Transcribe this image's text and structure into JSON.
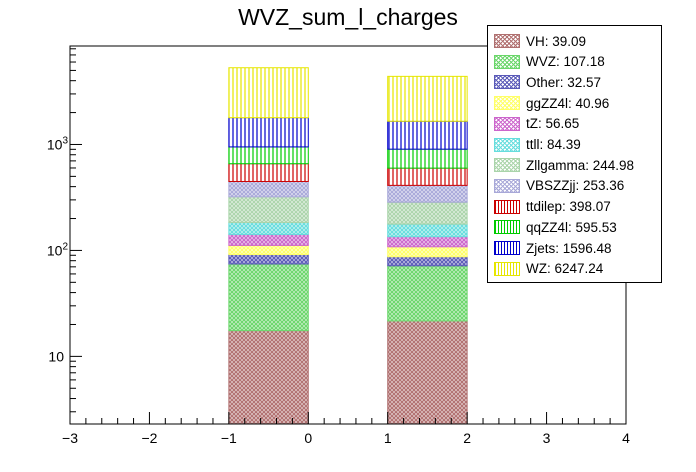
{
  "chart_data": {
    "type": "bar",
    "stacked": true,
    "title": "WVZ_sum_l_charges",
    "xlabel": "",
    "ylabel": "",
    "xlim": [
      -3,
      4
    ],
    "ylim": [
      2.3,
      8500
    ],
    "yscale": "log",
    "x_ticks": [
      "−3",
      "−2",
      "−1",
      "0",
      "1",
      "2",
      "3",
      "4"
    ],
    "y_ticks": [
      "10",
      "10^2",
      "10^3"
    ],
    "legend_position": "top-right",
    "bins": [
      [
        -1,
        0
      ],
      [
        1,
        2
      ]
    ],
    "series": [
      {
        "name": "VH",
        "legend": "VH: 39.09",
        "color": "#b07070",
        "hatch": "cross",
        "values": [
          17.5,
          21.6
        ]
      },
      {
        "name": "WVZ",
        "legend": "WVZ: 107.18",
        "color": "#6ad66a",
        "hatch": "cross",
        "values": [
          57,
          50
        ]
      },
      {
        "name": "Other",
        "legend": "Other: 32.57",
        "color": "#5a5ab8",
        "hatch": "cross",
        "values": [
          17,
          15.6
        ]
      },
      {
        "name": "ggZZ4l",
        "legend": "ggZZ4l: 40.96",
        "color": "#ffff66",
        "hatch": "cross",
        "values": [
          20,
          21
        ]
      },
      {
        "name": "tZ",
        "legend": "tZ: 56.65",
        "color": "#cc66cc",
        "hatch": "cross",
        "values": [
          30,
          26.6
        ]
      },
      {
        "name": "ttll",
        "legend": "ttll: 84.39",
        "color": "#66dddd",
        "hatch": "cross",
        "values": [
          42,
          42.4
        ]
      },
      {
        "name": "Zllgamma",
        "legend": "Zllgamma: 244.98",
        "color": "#aad4aa",
        "hatch": "cross",
        "values": [
          137,
          108
        ]
      },
      {
        "name": "VBSZZjj",
        "legend": "VBSZZjj: 253.36",
        "color": "#a8a8d8",
        "hatch": "cross",
        "values": [
          127,
          126
        ]
      },
      {
        "name": "ttdilep",
        "legend": "ttdilep: 398.07",
        "color": "#cc0000",
        "hatch": "vertical",
        "values": [
          211,
          187
        ]
      },
      {
        "name": "qqZZ4l",
        "legend": "qqZZ4l: 595.53",
        "color": "#00cc00",
        "hatch": "vertical",
        "values": [
          290,
          305
        ]
      },
      {
        "name": "Zjets",
        "legend": "Zjets: 1596.48",
        "color": "#0000cc",
        "hatch": "vertical",
        "values": [
          842,
          754
        ]
      },
      {
        "name": "WZ",
        "legend": "WZ: 6247.24",
        "color": "#e6e600",
        "hatch": "vertical",
        "values": [
          3510,
          2737
        ]
      }
    ]
  }
}
